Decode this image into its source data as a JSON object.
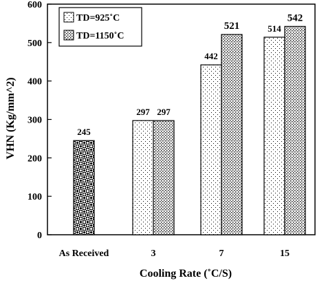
{
  "chart_data": {
    "type": "bar",
    "xlabel": "Cooling Rate (˚C/S)",
    "ylabel": "VHN (Kg/mm^2)",
    "ylim": [
      0,
      600
    ],
    "yticks": [
      0,
      100,
      200,
      300,
      400,
      500,
      600
    ],
    "grid": false,
    "legend_position": "top-left",
    "categories": [
      "As Received",
      "3",
      "7",
      "15"
    ],
    "series": [
      {
        "name": "As Received",
        "values": [
          245,
          null,
          null,
          null
        ],
        "pattern": "checker-circles",
        "in_legend": false
      },
      {
        "name": "TD=925˚C",
        "values": [
          null,
          297,
          442,
          514
        ],
        "pattern": "sparse-dots",
        "in_legend": true
      },
      {
        "name": "TD=1150˚C",
        "values": [
          null,
          297,
          521,
          542
        ],
        "pattern": "dense-dots",
        "in_legend": true
      }
    ],
    "data_labels": [
      {
        "category": "As Received",
        "text": "245"
      },
      {
        "category": "3",
        "text": "297"
      },
      {
        "category": "3",
        "text": "297"
      },
      {
        "category": "7",
        "text": "442"
      },
      {
        "category": "7",
        "text": "521"
      },
      {
        "category": "15",
        "text": "514"
      },
      {
        "category": "15",
        "text": "542"
      }
    ]
  }
}
